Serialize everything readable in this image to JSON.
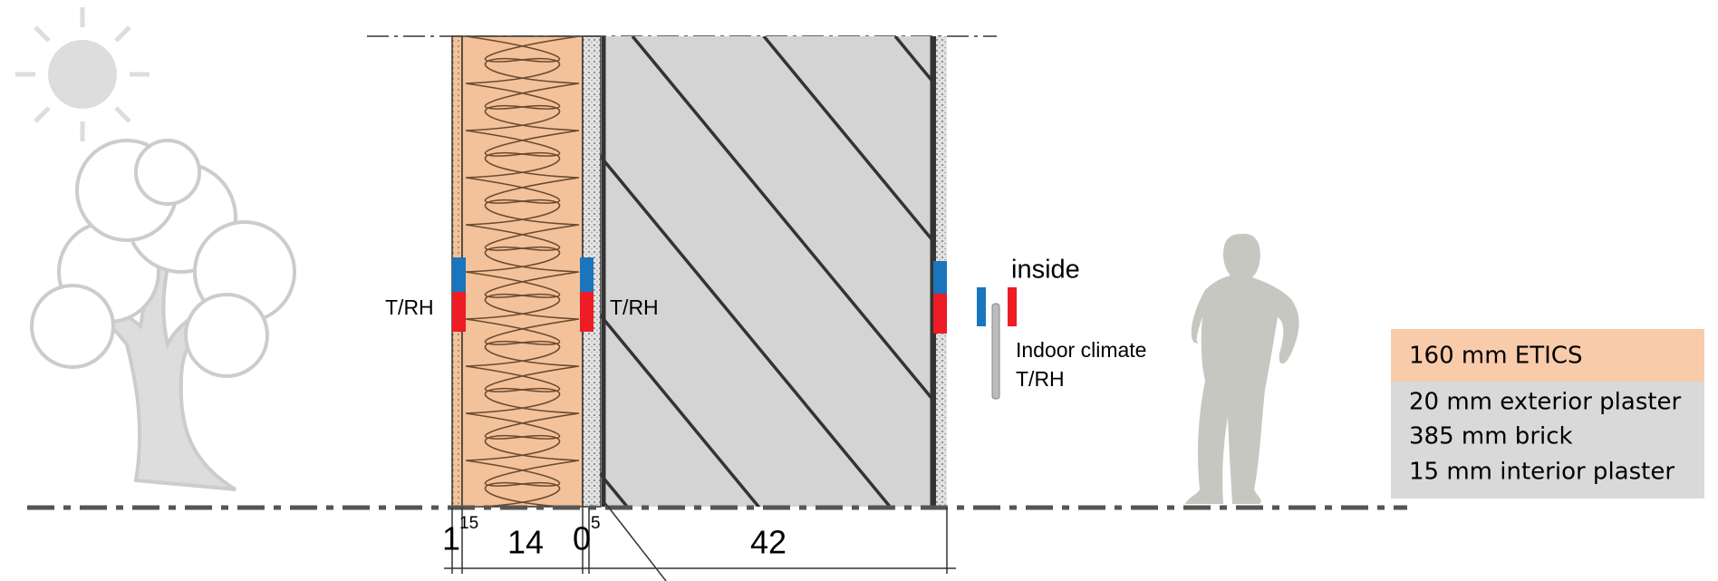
{
  "labels": {
    "sensor_left": "T/RH",
    "sensor_middle": "T/RH",
    "inside": "inside",
    "indoor_climate": "Indoor climate",
    "indoor_sensor": "T/RH"
  },
  "legend": {
    "etics": "160 mm ETICS",
    "layers": [
      "20 mm exterior plaster",
      "385 mm brick",
      "15 mm interior plaster"
    ]
  },
  "dimensions": [
    {
      "main": "1",
      "sup": "15"
    },
    {
      "main": "14"
    },
    {
      "main": "0",
      "sup": "5"
    },
    {
      "main": "42"
    }
  ]
}
